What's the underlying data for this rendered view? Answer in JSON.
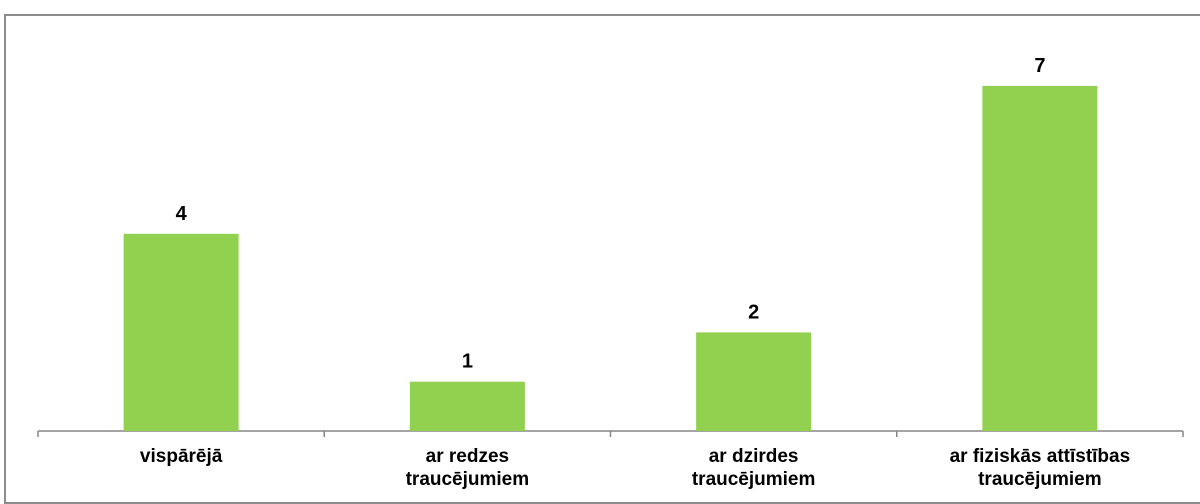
{
  "chart_data": {
    "type": "bar",
    "title": "",
    "xlabel": "",
    "ylabel": "",
    "categories": [
      [
        "vispārējā"
      ],
      [
        "ar redzes",
        "traucējumiem"
      ],
      [
        "ar dzirdes",
        "traucējumiem"
      ],
      [
        "ar fiziskās attīstības",
        "traucējumiem"
      ]
    ],
    "values": [
      4,
      1,
      2,
      7
    ],
    "ylim": [
      0,
      7
    ],
    "grid": false,
    "legend": "none",
    "bar_color": "#92d050",
    "axis_color": "#868686",
    "border_color": "#8c8c8c"
  }
}
